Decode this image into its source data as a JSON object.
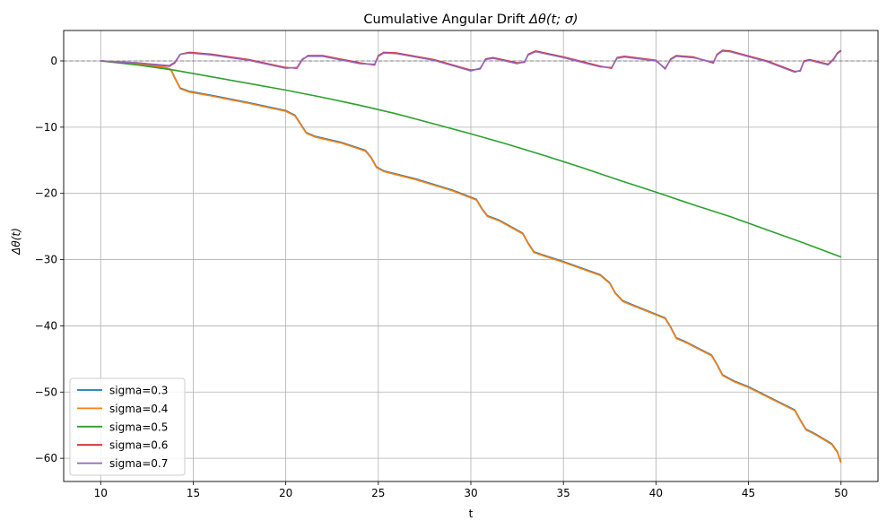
{
  "chart_data": {
    "type": "line",
    "title": "Cumulative Angular Drift Δθ(t; σ)",
    "title_parts": {
      "prefix": "Cumulative Angular Drift ",
      "math": "Δθ(t; σ)"
    },
    "xlabel": "t",
    "ylabel": "Δθ(t)",
    "xlim": [
      8.0,
      52.0
    ],
    "ylim": [
      -63.5,
      4.6
    ],
    "xticks": [
      10,
      15,
      20,
      25,
      30,
      35,
      40,
      45,
      50
    ],
    "yticks": [
      0,
      -10,
      -20,
      -30,
      -40,
      -50,
      -60
    ],
    "xtick_labels": [
      "10",
      "15",
      "20",
      "25",
      "30",
      "35",
      "40",
      "45",
      "50"
    ],
    "ytick_labels": [
      "0",
      "−10",
      "−20",
      "−30",
      "−40",
      "−50",
      "−60"
    ],
    "grid": true,
    "legend_position": "lower-left",
    "reference_line": {
      "y": 0,
      "style": "dashed",
      "color": "#808080"
    },
    "series": [
      {
        "name": "sigma=0.3",
        "color": "#1f77b4",
        "points": [
          [
            10,
            0
          ],
          [
            12,
            -0.4
          ],
          [
            13.5,
            -1.0
          ],
          [
            13.8,
            -1.3
          ],
          [
            14.0,
            -2.5
          ],
          [
            14.3,
            -4.1
          ],
          [
            14.8,
            -4.6
          ],
          [
            16,
            -5.2
          ],
          [
            18,
            -6.3
          ],
          [
            20,
            -7.5
          ],
          [
            20.5,
            -8.2
          ],
          [
            20.8,
            -9.5
          ],
          [
            21.1,
            -10.8
          ],
          [
            21.6,
            -11.4
          ],
          [
            23,
            -12.3
          ],
          [
            24.3,
            -13.5
          ],
          [
            24.6,
            -14.5
          ],
          [
            24.9,
            -16.0
          ],
          [
            25.3,
            -16.6
          ],
          [
            27,
            -17.8
          ],
          [
            29,
            -19.5
          ],
          [
            30.3,
            -20.9
          ],
          [
            30.6,
            -22.3
          ],
          [
            30.9,
            -23.4
          ],
          [
            31.5,
            -24.0
          ],
          [
            32.8,
            -26.0
          ],
          [
            33.1,
            -27.5
          ],
          [
            33.4,
            -28.8
          ],
          [
            33.9,
            -29.3
          ],
          [
            35,
            -30.3
          ],
          [
            37,
            -32.3
          ],
          [
            37.5,
            -33.5
          ],
          [
            37.8,
            -35.0
          ],
          [
            38.2,
            -36.2
          ],
          [
            38.8,
            -36.9
          ],
          [
            40.5,
            -38.8
          ],
          [
            40.8,
            -40.2
          ],
          [
            41.1,
            -41.8
          ],
          [
            41.6,
            -42.4
          ],
          [
            43,
            -44.4
          ],
          [
            43.3,
            -45.8
          ],
          [
            43.6,
            -47.4
          ],
          [
            44.2,
            -48.3
          ],
          [
            45,
            -49.2
          ],
          [
            47.5,
            -52.7
          ],
          [
            47.8,
            -54.2
          ],
          [
            48.1,
            -55.6
          ],
          [
            48.6,
            -56.3
          ],
          [
            49.5,
            -57.8
          ],
          [
            49.8,
            -59.0
          ],
          [
            50,
            -60.6
          ]
        ]
      },
      {
        "name": "sigma=0.4",
        "color": "#ff7f0e",
        "points": [
          [
            10,
            0
          ],
          [
            12,
            -0.4
          ],
          [
            13.5,
            -1.0
          ],
          [
            13.8,
            -1.4
          ],
          [
            14.0,
            -2.6
          ],
          [
            14.3,
            -4.2
          ],
          [
            14.8,
            -4.7
          ],
          [
            16,
            -5.3
          ],
          [
            18,
            -6.4
          ],
          [
            20,
            -7.6
          ],
          [
            20.5,
            -8.3
          ],
          [
            20.8,
            -9.6
          ],
          [
            21.1,
            -10.9
          ],
          [
            21.6,
            -11.5
          ],
          [
            23,
            -12.4
          ],
          [
            24.3,
            -13.6
          ],
          [
            24.6,
            -14.6
          ],
          [
            24.9,
            -16.1
          ],
          [
            25.3,
            -16.7
          ],
          [
            27,
            -17.9
          ],
          [
            29,
            -19.6
          ],
          [
            30.3,
            -21.0
          ],
          [
            30.6,
            -22.4
          ],
          [
            30.9,
            -23.5
          ],
          [
            31.5,
            -24.1
          ],
          [
            32.8,
            -26.1
          ],
          [
            33.1,
            -27.6
          ],
          [
            33.4,
            -28.9
          ],
          [
            33.9,
            -29.4
          ],
          [
            35,
            -30.4
          ],
          [
            37,
            -32.4
          ],
          [
            37.5,
            -33.6
          ],
          [
            37.8,
            -35.1
          ],
          [
            38.2,
            -36.3
          ],
          [
            38.8,
            -37.0
          ],
          [
            40.5,
            -38.9
          ],
          [
            40.8,
            -40.3
          ],
          [
            41.1,
            -41.9
          ],
          [
            41.6,
            -42.5
          ],
          [
            43,
            -44.5
          ],
          [
            43.3,
            -45.9
          ],
          [
            43.6,
            -47.5
          ],
          [
            44.2,
            -48.4
          ],
          [
            45,
            -49.3
          ],
          [
            47.5,
            -52.8
          ],
          [
            47.8,
            -54.3
          ],
          [
            48.1,
            -55.7
          ],
          [
            48.6,
            -56.4
          ],
          [
            49.5,
            -57.9
          ],
          [
            49.8,
            -59.1
          ],
          [
            50,
            -60.7
          ]
        ]
      },
      {
        "name": "sigma=0.5",
        "color": "#2ca02c",
        "points": [
          [
            10,
            0
          ],
          [
            12,
            -0.6
          ],
          [
            14,
            -1.4
          ],
          [
            16,
            -2.4
          ],
          [
            18,
            -3.4
          ],
          [
            20,
            -4.4
          ],
          [
            22,
            -5.5
          ],
          [
            24,
            -6.7
          ],
          [
            26,
            -8.0
          ],
          [
            28,
            -9.5
          ],
          [
            30,
            -11.0
          ],
          [
            32,
            -12.6
          ],
          [
            34,
            -14.3
          ],
          [
            36,
            -16.1
          ],
          [
            38,
            -18.0
          ],
          [
            40,
            -19.8
          ],
          [
            42,
            -21.7
          ],
          [
            44,
            -23.5
          ],
          [
            46,
            -25.5
          ],
          [
            48,
            -27.5
          ],
          [
            50,
            -29.6
          ]
        ]
      },
      {
        "name": "sigma=0.6",
        "color": "#d62728",
        "points": [
          [
            10,
            0
          ],
          [
            12,
            -0.3
          ],
          [
            13.7,
            -0.8
          ],
          [
            14.0,
            -0.3
          ],
          [
            14.3,
            1.0
          ],
          [
            14.8,
            1.3
          ],
          [
            16,
            1.0
          ],
          [
            18,
            0.2
          ],
          [
            20,
            -1.0
          ],
          [
            20.6,
            -1.1
          ],
          [
            20.9,
            0.2
          ],
          [
            21.2,
            0.8
          ],
          [
            22,
            0.8
          ],
          [
            24,
            -0.3
          ],
          [
            24.8,
            -0.6
          ],
          [
            25.0,
            0.8
          ],
          [
            25.3,
            1.3
          ],
          [
            26,
            1.2
          ],
          [
            28,
            0.2
          ],
          [
            30,
            -1.4
          ],
          [
            30.5,
            -1.2
          ],
          [
            30.8,
            0.3
          ],
          [
            31.2,
            0.5
          ],
          [
            32.5,
            -0.3
          ],
          [
            32.9,
            -0.2
          ],
          [
            33.1,
            1.0
          ],
          [
            33.5,
            1.5
          ],
          [
            35,
            0.6
          ],
          [
            37,
            -0.8
          ],
          [
            37.6,
            -1.1
          ],
          [
            37.9,
            0.5
          ],
          [
            38.3,
            0.7
          ],
          [
            40,
            0.1
          ],
          [
            40.5,
            -1.2
          ],
          [
            40.8,
            0.3
          ],
          [
            41.1,
            0.8
          ],
          [
            42,
            0.6
          ],
          [
            43.1,
            -0.3
          ],
          [
            43.3,
            1.0
          ],
          [
            43.6,
            1.6
          ],
          [
            44,
            1.5
          ],
          [
            46,
            0
          ],
          [
            47.5,
            -1.6
          ],
          [
            47.8,
            -1.5
          ],
          [
            48.0,
            0
          ],
          [
            48.3,
            0.2
          ],
          [
            49.3,
            -0.5
          ],
          [
            49.6,
            0.3
          ],
          [
            49.8,
            1.2
          ],
          [
            50,
            1.6
          ]
        ]
      },
      {
        "name": "sigma=0.7",
        "color": "#9467bd",
        "points": [
          [
            10,
            0
          ],
          [
            12,
            -0.3
          ],
          [
            13.7,
            -0.7
          ],
          [
            14.0,
            -0.2
          ],
          [
            14.3,
            1.0
          ],
          [
            14.8,
            1.2
          ],
          [
            16,
            0.9
          ],
          [
            18,
            0.1
          ],
          [
            20,
            -1.1
          ],
          [
            20.6,
            -1.0
          ],
          [
            20.9,
            0.3
          ],
          [
            21.2,
            0.7
          ],
          [
            22,
            0.7
          ],
          [
            24,
            -0.4
          ],
          [
            24.8,
            -0.5
          ],
          [
            25.0,
            0.7
          ],
          [
            25.3,
            1.2
          ],
          [
            26,
            1.1
          ],
          [
            28,
            0.1
          ],
          [
            30,
            -1.5
          ],
          [
            30.5,
            -1.1
          ],
          [
            30.8,
            0.2
          ],
          [
            31.2,
            0.4
          ],
          [
            32.5,
            -0.4
          ],
          [
            32.9,
            -0.1
          ],
          [
            33.1,
            0.9
          ],
          [
            33.5,
            1.4
          ],
          [
            35,
            0.5
          ],
          [
            37,
            -0.9
          ],
          [
            37.6,
            -1.0
          ],
          [
            37.9,
            0.4
          ],
          [
            38.3,
            0.6
          ],
          [
            40,
            0
          ],
          [
            40.5,
            -1.1
          ],
          [
            40.8,
            0.2
          ],
          [
            41.1,
            0.7
          ],
          [
            42,
            0.5
          ],
          [
            43.1,
            -0.2
          ],
          [
            43.3,
            0.9
          ],
          [
            43.6,
            1.5
          ],
          [
            44,
            1.4
          ],
          [
            46,
            -0.1
          ],
          [
            47.5,
            -1.7
          ],
          [
            47.8,
            -1.4
          ],
          [
            48.0,
            -0.1
          ],
          [
            48.3,
            0.1
          ],
          [
            49.3,
            -0.6
          ],
          [
            49.6,
            0.2
          ],
          [
            49.8,
            1.1
          ],
          [
            50,
            1.5
          ]
        ]
      }
    ]
  }
}
